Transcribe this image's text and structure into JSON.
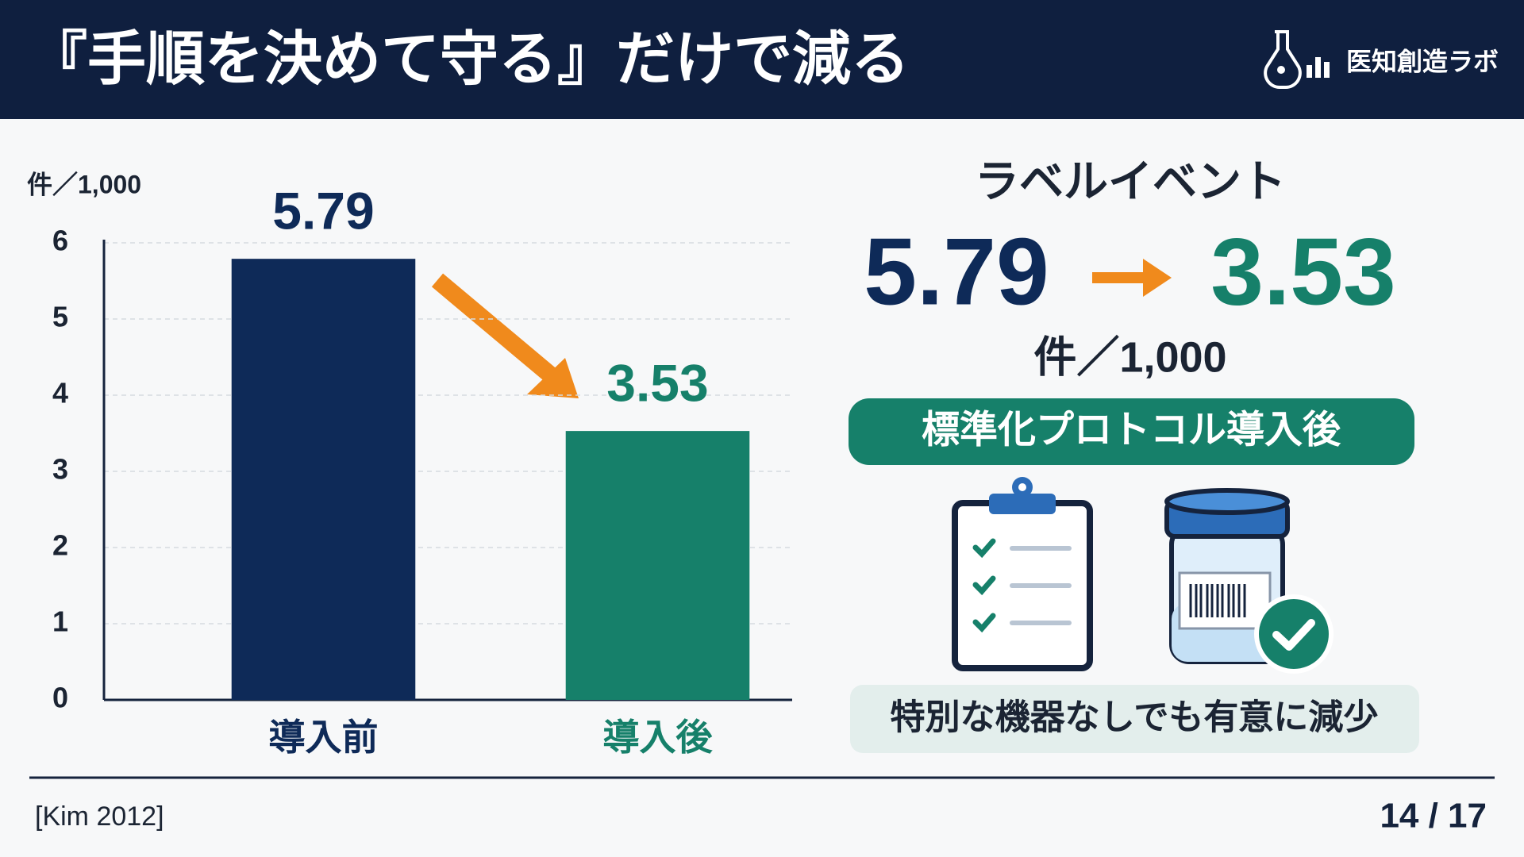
{
  "header": {
    "title": "『手順を決めて守る』だけで減る",
    "logo": "医知創造ラボ"
  },
  "chart_data": {
    "type": "bar",
    "y_label": "件／1,000",
    "categories": [
      "導入前",
      "導入後"
    ],
    "values": [
      5.79,
      3.53
    ],
    "colors": [
      "#0e2a58",
      "#16806a"
    ],
    "ylim": [
      0,
      6
    ],
    "yticks": [
      0,
      1,
      2,
      3,
      4,
      5,
      6
    ],
    "grid": true
  },
  "panel": {
    "title": "ラベルイベント",
    "badge": "標準化プロトコル導入後",
    "note": "特別な機器なしでも有意に減少"
  },
  "footer": {
    "source": "[Kim 2012]",
    "page": "14 / 17"
  }
}
